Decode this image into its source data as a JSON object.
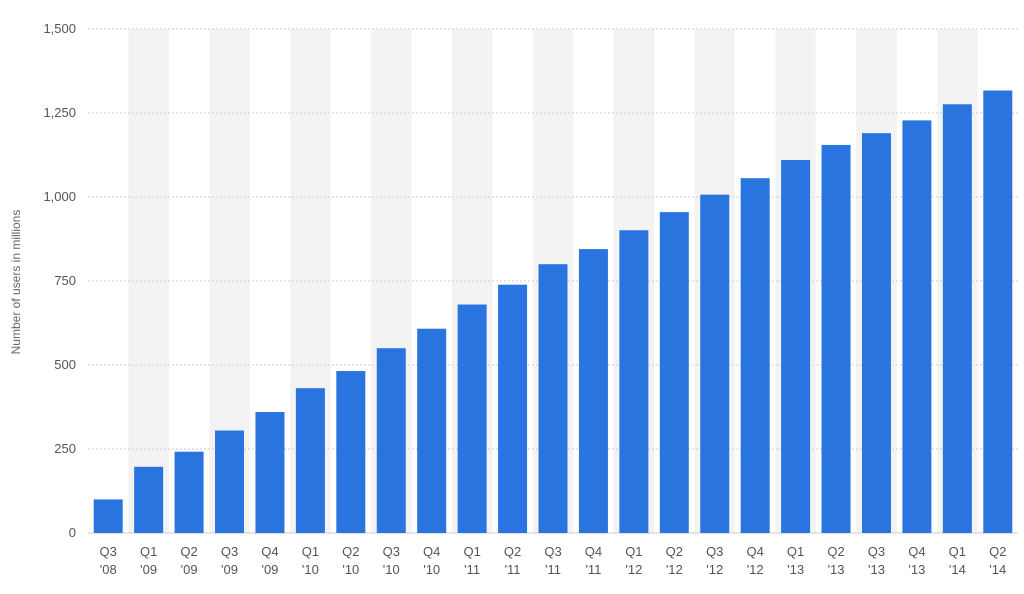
{
  "chart_data": {
    "type": "bar",
    "title": "",
    "ylabel": "Number of users in millions",
    "xlabel": "",
    "ylim": [
      0,
      1500
    ],
    "yticks": [
      0,
      250,
      500,
      750,
      1000,
      1250,
      1500
    ],
    "ytick_labels": [
      "0",
      "250",
      "500",
      "750",
      "1,000",
      "1,250",
      "1,500"
    ],
    "grid": "horizontal dashed",
    "alternating_column_shading": true,
    "bar_color": "#2a74df",
    "shade_color": "#f3f3f3",
    "categories": [
      {
        "q": "Q3",
        "y": "'08"
      },
      {
        "q": "Q1",
        "y": "'09"
      },
      {
        "q": "Q2",
        "y": "'09"
      },
      {
        "q": "Q3",
        "y": "'09"
      },
      {
        "q": "Q4",
        "y": "'09"
      },
      {
        "q": "Q1",
        "y": "'10"
      },
      {
        "q": "Q2",
        "y": "'10"
      },
      {
        "q": "Q3",
        "y": "'10"
      },
      {
        "q": "Q4",
        "y": "'10"
      },
      {
        "q": "Q1",
        "y": "'11"
      },
      {
        "q": "Q2",
        "y": "'11"
      },
      {
        "q": "Q3",
        "y": "'11"
      },
      {
        "q": "Q4",
        "y": "'11"
      },
      {
        "q": "Q1",
        "y": "'12"
      },
      {
        "q": "Q2",
        "y": "'12"
      },
      {
        "q": "Q3",
        "y": "'12"
      },
      {
        "q": "Q4",
        "y": "'12"
      },
      {
        "q": "Q1",
        "y": "'13"
      },
      {
        "q": "Q2",
        "y": "'13"
      },
      {
        "q": "Q3",
        "y": "'13"
      },
      {
        "q": "Q4",
        "y": "'13"
      },
      {
        "q": "Q1",
        "y": "'14"
      },
      {
        "q": "Q2",
        "y": "'14"
      }
    ],
    "values": [
      100,
      197,
      242,
      305,
      360,
      431,
      482,
      550,
      608,
      680,
      739,
      800,
      845,
      901,
      955,
      1007,
      1056,
      1110,
      1155,
      1190,
      1228,
      1276,
      1317
    ]
  }
}
